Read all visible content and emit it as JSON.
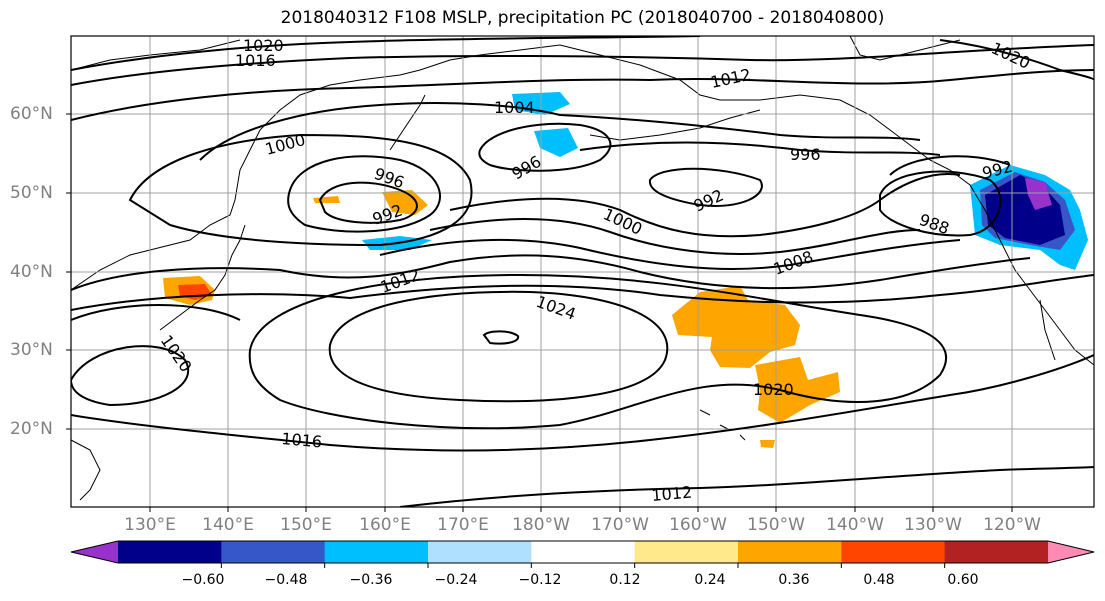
{
  "title": "2018040312 F108 MSLP, precipitation PC (2018040700 - 2018040800)",
  "lat_labels": [
    "60°N",
    "50°N",
    "40°N",
    "30°N",
    "20°N"
  ],
  "lon_labels": [
    "130°E",
    "140°E",
    "150°E",
    "160°E",
    "170°E",
    "180°W",
    "170°W",
    "160°W",
    "150°W",
    "140°W",
    "130°W",
    "120°W"
  ],
  "contour_labels": [
    "1020",
    "1016",
    "1004",
    "1012",
    "1020",
    "996",
    "1000",
    "996",
    "992",
    "996",
    "992",
    "1000",
    "992",
    "988",
    "1008",
    "1012",
    "1024",
    "1020",
    "1020",
    "1016",
    "1012"
  ],
  "colorbar": {
    "colors": [
      "#9932cc",
      "#00008b",
      "#3657c8",
      "#00bfff",
      "#b0e0ff",
      "#ffffff",
      "#ffe98a",
      "#ffa500",
      "#ff4500",
      "#b22222",
      "#ff8ab4"
    ],
    "labels": [
      "−0.60",
      "−0.48",
      "−0.36",
      "−0.24",
      "−0.12",
      "0.12",
      "0.24",
      "0.36",
      "0.48",
      "0.60"
    ]
  }
}
